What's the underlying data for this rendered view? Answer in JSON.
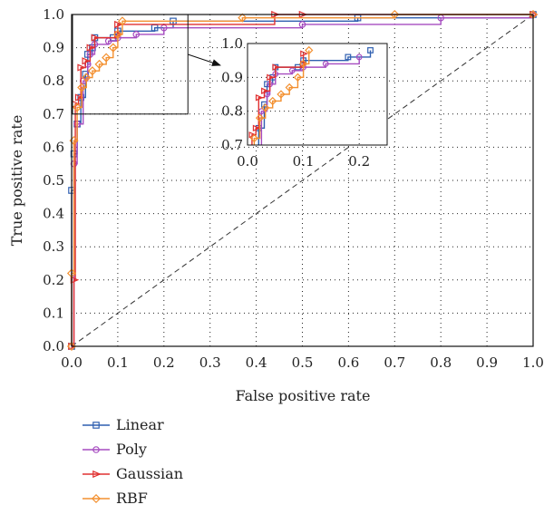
{
  "chart_data": {
    "type": "line",
    "xlabel": "False positive rate",
    "ylabel": "True positive rate",
    "xlim": [
      0,
      1
    ],
    "ylim": [
      0,
      1
    ],
    "ticks": [
      "0.0",
      "0.1",
      "0.2",
      "0.3",
      "0.4",
      "0.5",
      "0.6",
      "0.7",
      "0.8",
      "0.9",
      "1.0"
    ],
    "grid": true,
    "legend_position": "below",
    "reference_line": [
      [
        0,
        0
      ],
      [
        1,
        1
      ]
    ],
    "series": [
      {
        "name": "Linear",
        "color": "#2f5fb0",
        "marker": "square",
        "points": [
          [
            0,
            0
          ],
          [
            0,
            0.47
          ],
          [
            0.005,
            0.58
          ],
          [
            0.012,
            0.67
          ],
          [
            0.02,
            0.75
          ],
          [
            0.03,
            0.82
          ],
          [
            0.035,
            0.88
          ],
          [
            0.045,
            0.9
          ],
          [
            0.05,
            0.93
          ],
          [
            0.09,
            0.93
          ],
          [
            0.1,
            0.95
          ],
          [
            0.18,
            0.96
          ],
          [
            0.22,
            0.98
          ],
          [
            0.62,
            0.99
          ],
          [
            1,
            1
          ]
        ]
      },
      {
        "name": "Poly",
        "color": "#a64cc0",
        "marker": "circle",
        "points": [
          [
            0,
            0
          ],
          [
            0.005,
            0.55
          ],
          [
            0.012,
            0.67
          ],
          [
            0.025,
            0.8
          ],
          [
            0.035,
            0.85
          ],
          [
            0.04,
            0.88
          ],
          [
            0.05,
            0.91
          ],
          [
            0.08,
            0.92
          ],
          [
            0.1,
            0.93
          ],
          [
            0.14,
            0.94
          ],
          [
            0.2,
            0.96
          ],
          [
            0.5,
            0.97
          ],
          [
            0.8,
            0.99
          ],
          [
            1,
            1
          ]
        ]
      },
      {
        "name": "Gaussian",
        "color": "#e03030",
        "marker": "triangle-right",
        "points": [
          [
            0,
            0
          ],
          [
            0.005,
            0.2
          ],
          [
            0.008,
            0.73
          ],
          [
            0.015,
            0.75
          ],
          [
            0.02,
            0.84
          ],
          [
            0.03,
            0.86
          ],
          [
            0.04,
            0.9
          ],
          [
            0.05,
            0.93
          ],
          [
            0.1,
            0.94
          ],
          [
            0.1,
            0.97
          ],
          [
            0.44,
            1.0
          ],
          [
            0.5,
            1.0
          ],
          [
            1,
            1
          ]
        ]
      },
      {
        "name": "RBF",
        "color": "#f39030",
        "marker": "diamond",
        "points": [
          [
            0,
            0
          ],
          [
            0,
            0.22
          ],
          [
            0.005,
            0.62
          ],
          [
            0.012,
            0.72
          ],
          [
            0.022,
            0.78
          ],
          [
            0.032,
            0.81
          ],
          [
            0.045,
            0.83
          ],
          [
            0.06,
            0.85
          ],
          [
            0.075,
            0.87
          ],
          [
            0.09,
            0.9
          ],
          [
            0.1,
            0.94
          ],
          [
            0.11,
            0.98
          ],
          [
            0.37,
            0.99
          ],
          [
            0.7,
            1.0
          ],
          [
            1,
            1
          ]
        ]
      }
    ],
    "inset": {
      "xlim": [
        0,
        0.25
      ],
      "ylim": [
        0.7,
        1.0
      ],
      "xticks": [
        "0.0",
        "0.1",
        "0.2"
      ],
      "yticks": [
        "0.7",
        "0.8",
        "0.9",
        "1.0"
      ],
      "source_region": {
        "x": [
          0,
          0.25
        ],
        "y": [
          0.7,
          1.0
        ]
      }
    }
  }
}
